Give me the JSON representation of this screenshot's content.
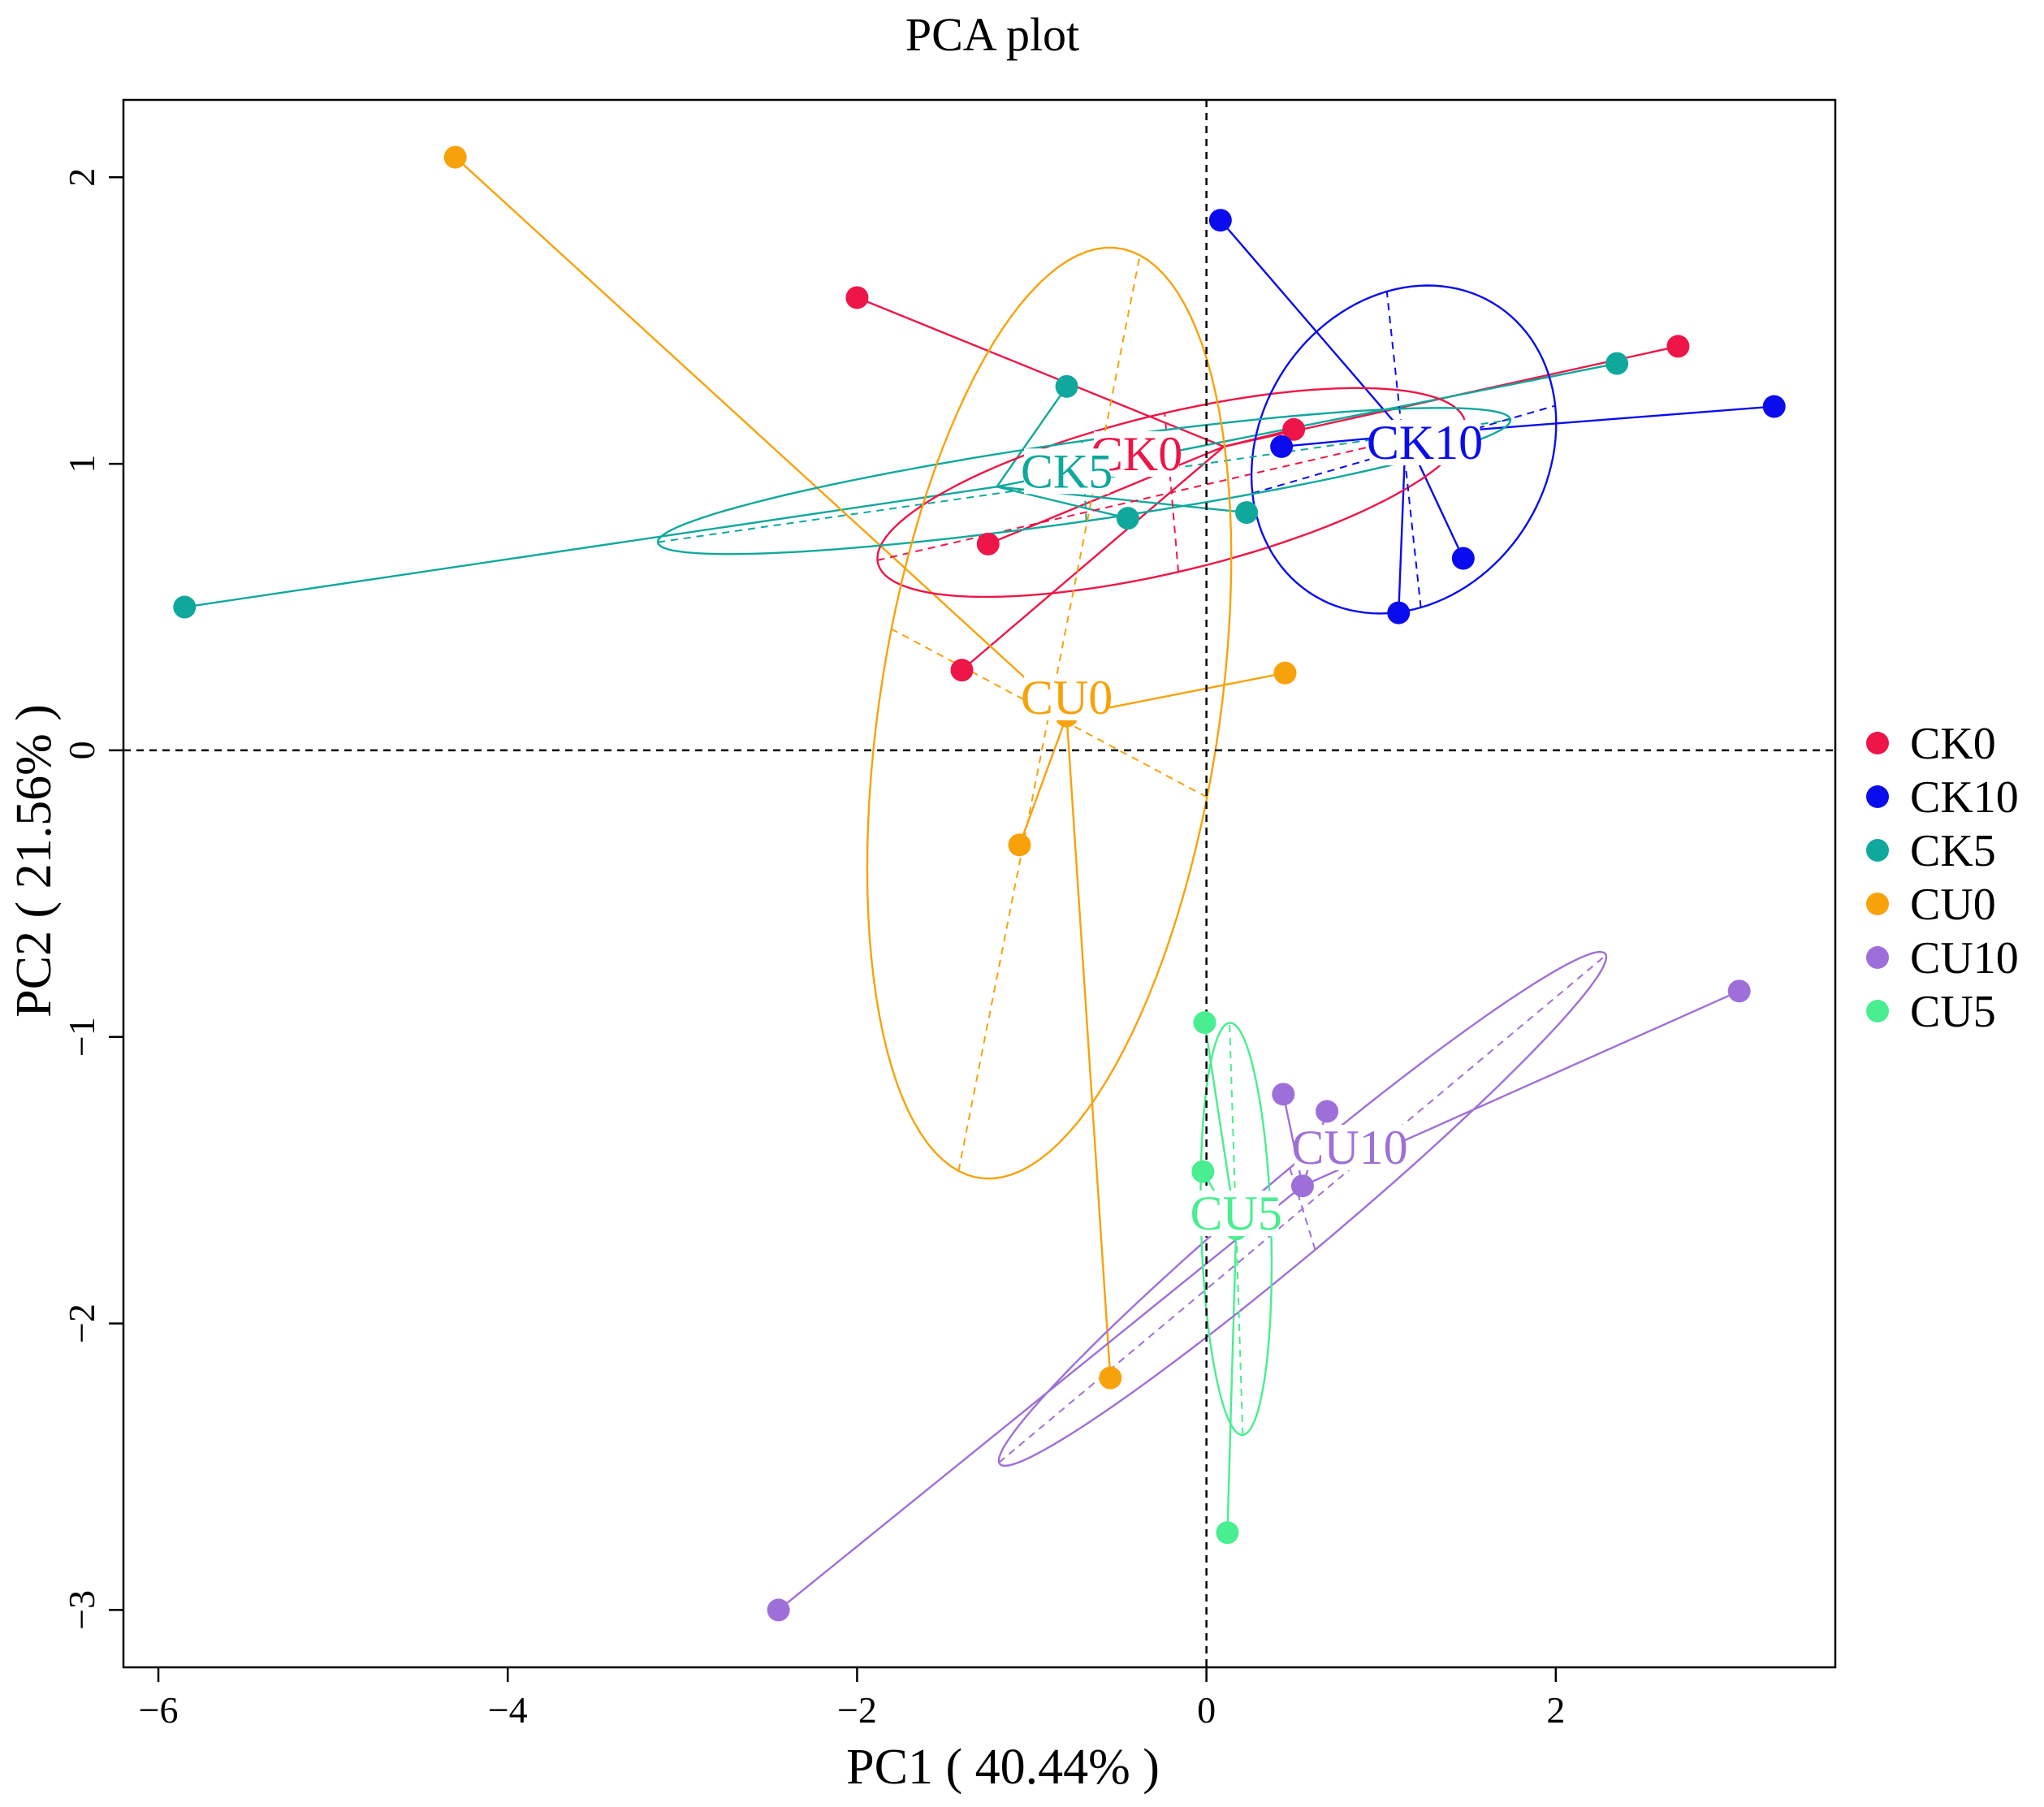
{
  "chart_data": {
    "type": "scatter",
    "title": "PCA plot",
    "xlabel": "PC1 ( 40.44% )",
    "ylabel": "PC2 ( 21.56% )",
    "xlim": [
      -6.2,
      3.6
    ],
    "ylim": [
      -3.2,
      2.27
    ],
    "xticks": [
      -6,
      -4,
      -2,
      0,
      2
    ],
    "yticks": [
      -3,
      -2,
      -1,
      0,
      1,
      2
    ],
    "xtick_labels": [
      "−6",
      "−4",
      "−2",
      "0",
      "2"
    ],
    "ytick_labels": [
      "−3",
      "−2",
      "−1",
      "0",
      "1",
      "2"
    ],
    "reference_lines": {
      "x": 0,
      "y": 0,
      "style": "dashed"
    },
    "legend_position": "right",
    "series": [
      {
        "name": "CK0",
        "color": "#EE1548",
        "centroid": [
          0.1,
          1.06
        ],
        "label_at": [
          -0.4,
          1.0
        ],
        "points": [
          [
            -2.0,
            1.58
          ],
          [
            2.7,
            1.41
          ],
          [
            0.5,
            1.12
          ],
          [
            -1.25,
            0.72
          ],
          [
            -1.4,
            0.28
          ]
        ],
        "ellipse": {
          "cx": -0.2,
          "cy": 0.9,
          "rx": 1.7,
          "ry": 0.28,
          "angle": 8
        }
      },
      {
        "name": "CK10",
        "color": "#0A0CEE",
        "centroid": [
          1.14,
          1.1
        ],
        "label_at": [
          1.25,
          1.04
        ],
        "points": [
          [
            0.08,
            1.85
          ],
          [
            3.25,
            1.2
          ],
          [
            0.43,
            1.06
          ],
          [
            1.47,
            0.67
          ],
          [
            1.1,
            0.48
          ]
        ],
        "ellipse": {
          "cx": 1.13,
          "cy": 1.05,
          "rx": 0.88,
          "ry": 0.56,
          "angle": 10
        }
      },
      {
        "name": "CK5",
        "color": "#10A89C",
        "centroid": [
          -1.2,
          0.92
        ],
        "label_at": [
          -0.8,
          0.94
        ],
        "points": [
          [
            -0.8,
            1.27
          ],
          [
            2.35,
            1.35
          ],
          [
            -0.45,
            0.81
          ],
          [
            0.23,
            0.83
          ],
          [
            -5.85,
            0.5
          ]
        ],
        "ellipse": {
          "cx": -0.7,
          "cy": 0.94,
          "rx": 2.45,
          "ry": 0.14,
          "angle": 5
        }
      },
      {
        "name": "CU0",
        "color": "#F7A20B",
        "centroid": [
          -0.8,
          0.12
        ],
        "label_at": [
          -0.8,
          0.15
        ],
        "points": [
          [
            -4.3,
            2.07
          ],
          [
            0.45,
            0.27
          ],
          [
            -1.07,
            -0.33
          ],
          [
            -0.55,
            -2.19
          ],
          [
            -0.8,
            0.12
          ]
        ],
        "ellipse": {
          "cx": -0.9,
          "cy": 0.13,
          "rx": 1.68,
          "ry": 0.95,
          "angle": 72
        }
      },
      {
        "name": "CU10",
        "color": "#9F6FD9",
        "centroid": [
          0.55,
          -1.52
        ],
        "label_at": [
          0.82,
          -1.42
        ],
        "points": [
          [
            3.05,
            -0.84
          ],
          [
            0.44,
            -1.2
          ],
          [
            0.69,
            -1.26
          ],
          [
            -2.45,
            -3.0
          ],
          [
            0.55,
            -1.52
          ]
        ],
        "ellipse": {
          "cx": 0.55,
          "cy": -1.6,
          "rx": 1.95,
          "ry": 0.16,
          "angle": 27
        }
      },
      {
        "name": "CU5",
        "color": "#48EE8F",
        "centroid": [
          0.17,
          -1.67
        ],
        "label_at": [
          0.17,
          -1.65
        ],
        "points": [
          [
            -0.01,
            -0.95
          ],
          [
            -0.02,
            -1.47
          ],
          [
            0.12,
            -2.73
          ],
          [
            0.17,
            -1.67
          ]
        ],
        "ellipse": {
          "cx": 0.17,
          "cy": -1.67,
          "rx": 0.2,
          "ry": 0.72,
          "angle": 3
        }
      }
    ]
  }
}
